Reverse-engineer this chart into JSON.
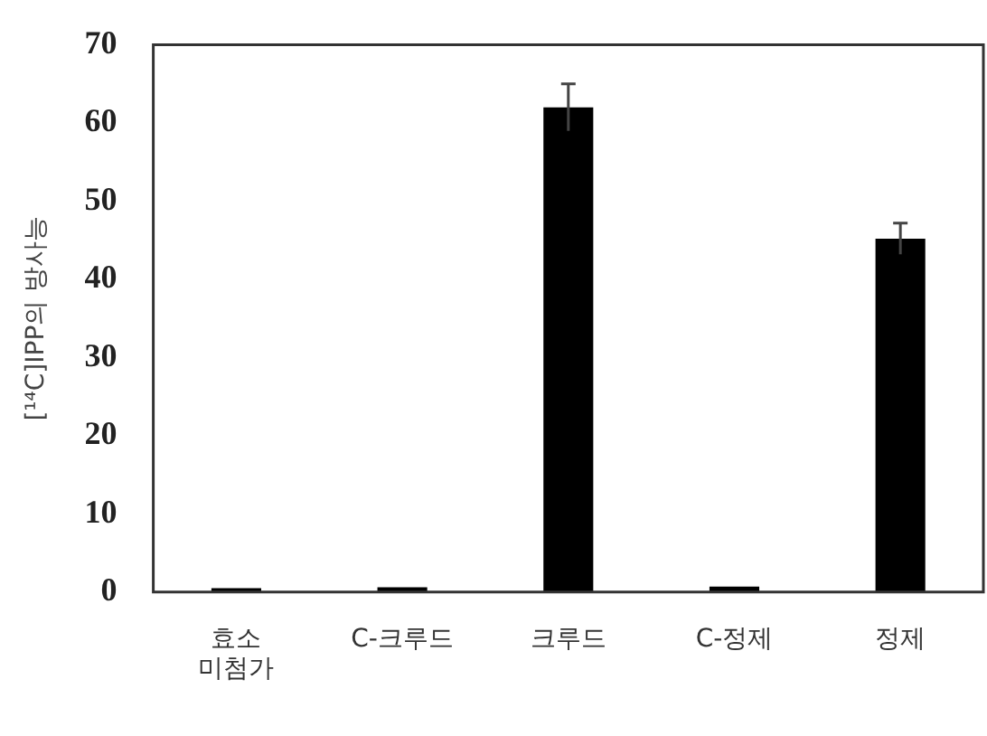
{
  "chart_data": {
    "type": "bar",
    "ylabel": "[¹⁴C]IPP의 방사능",
    "categories": [
      "효소 미첨가",
      "C-크루드",
      "크루드",
      "C-정제",
      "정제"
    ],
    "values": [
      0.5,
      0.6,
      62,
      0.7,
      45.2
    ],
    "errors": [
      null,
      null,
      3,
      null,
      2
    ],
    "color": "#000000",
    "ylim": [
      0,
      70
    ],
    "yticks": [
      0,
      10,
      20,
      30,
      40,
      50,
      60,
      70
    ],
    "grid": false,
    "legend": false
  }
}
